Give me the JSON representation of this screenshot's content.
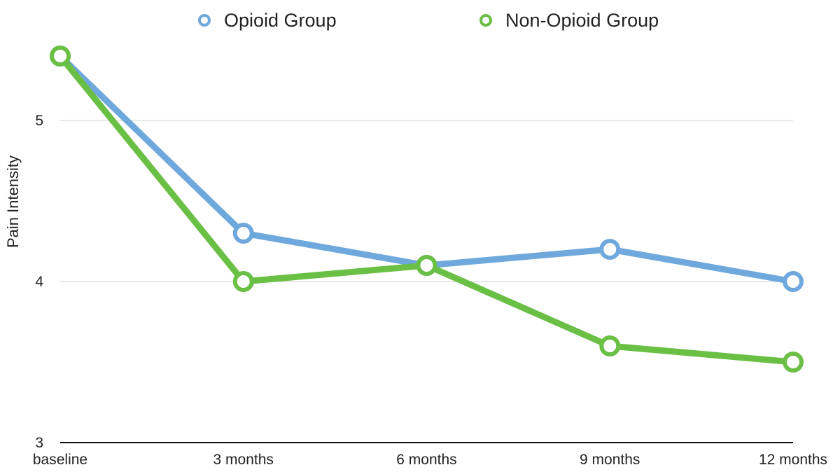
{
  "chart_data": {
    "type": "line",
    "title": "",
    "xlabel": "",
    "ylabel": "Pain Intensity",
    "categories": [
      "baseline",
      "3 months",
      "6 months",
      "9 months",
      "12 months"
    ],
    "ylim": [
      3,
      5.4
    ],
    "yticks": [
      3,
      4,
      5
    ],
    "grid": true,
    "legend_position": "top",
    "series": [
      {
        "name": "Opioid Group",
        "color": "#6fa8dc",
        "values": [
          5.4,
          4.3,
          4.1,
          4.2,
          4.0
        ]
      },
      {
        "name": "Non-Opioid Group",
        "color": "#6abf45",
        "values": [
          5.4,
          4.0,
          4.1,
          3.6,
          3.5
        ]
      }
    ]
  }
}
